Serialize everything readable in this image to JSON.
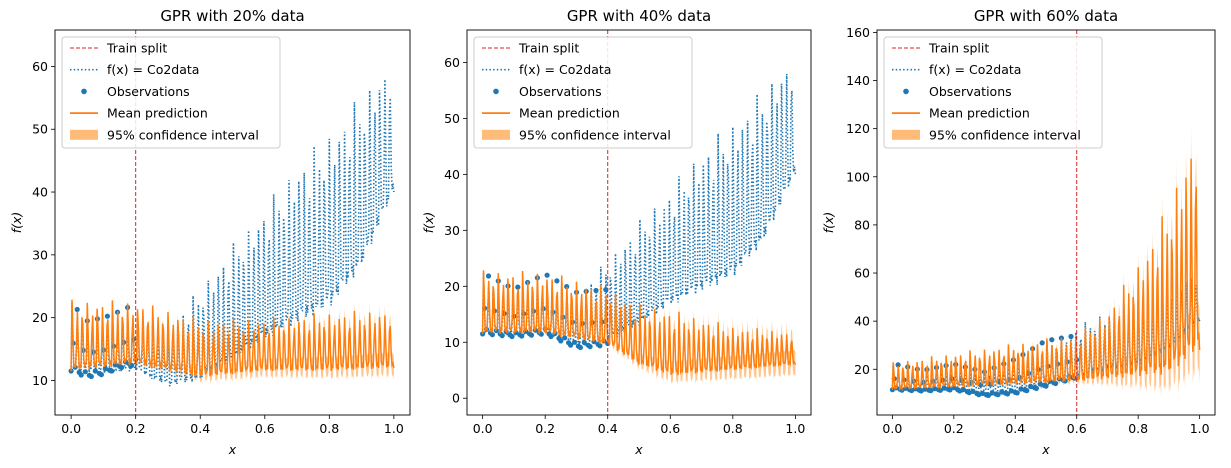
{
  "figure": {
    "background": "#ffffff",
    "colors": {
      "true_function": "#1f77b4",
      "observations": "#1f77b4",
      "mean_prediction": "#ff7f0e",
      "confidence_interval": "#ffbb78",
      "train_split": "#d62728"
    }
  },
  "chart_data": [
    {
      "type": "line",
      "title": "GPR with 20% data",
      "xlabel": "x",
      "ylabel": "f(x)",
      "xlim": [
        -0.05,
        1.05
      ],
      "ylim": [
        4.5,
        65.8
      ],
      "xticks": [
        "0.0",
        "0.2",
        "0.4",
        "0.6",
        "0.8",
        "1.0"
      ],
      "yticks": [
        "10",
        "20",
        "30",
        "40",
        "50",
        "60"
      ],
      "grid": false,
      "legend_position": "upper-left",
      "train_split_x": 0.2,
      "legend": [
        "Train split",
        "f(x) = Co2data",
        "Observations",
        "Mean prediction",
        "95% confidence interval"
      ],
      "series": [
        {
          "name": "f(x) = Co2data",
          "style": "dotted",
          "x": [
            0.0,
            0.1,
            0.2,
            0.3,
            0.4,
            0.5,
            0.6,
            0.7,
            0.8,
            0.9,
            1.0
          ],
          "y_low": [
            11.5,
            11.0,
            11.5,
            9.0,
            10.0,
            13.0,
            16.5,
            19.0,
            21.5,
            28.0,
            40.0
          ],
          "y_high": [
            22.5,
            20.0,
            21.5,
            19.0,
            25.0,
            32.0,
            38.0,
            45.0,
            50.0,
            56.0,
            62.5
          ]
        },
        {
          "name": "Observations",
          "style": "markers",
          "x": [
            0.0,
            0.05,
            0.1,
            0.15,
            0.2
          ],
          "y_low": [
            11.5,
            10.5,
            11.0,
            12.0,
            12.5
          ],
          "y_high": [
            23.0,
            20.0,
            20.5,
            21.5,
            22.8
          ]
        },
        {
          "name": "Mean prediction",
          "style": "solid",
          "x": [
            0.0,
            0.2,
            0.4,
            0.6,
            0.8,
            1.0
          ],
          "y_low": [
            11.5,
            12.5,
            10.5,
            11.5,
            11.5,
            12.0
          ],
          "y_high": [
            23.0,
            22.8,
            20.0,
            20.0,
            21.0,
            21.5
          ]
        },
        {
          "name": "95% confidence interval",
          "style": "band",
          "x": [
            0.0,
            0.2,
            0.4,
            0.6,
            0.8,
            1.0
          ],
          "half_width": [
            0.4,
            0.4,
            1.2,
            1.4,
            1.6,
            1.8
          ]
        }
      ]
    },
    {
      "type": "line",
      "title": "GPR with 40% data",
      "xlabel": "x",
      "ylabel": "f(x)",
      "xlim": [
        -0.05,
        1.05
      ],
      "ylim": [
        -3.0,
        65.8
      ],
      "xticks": [
        "0.0",
        "0.2",
        "0.4",
        "0.6",
        "0.8",
        "1.0"
      ],
      "yticks": [
        "0",
        "10",
        "20",
        "30",
        "40",
        "50",
        "60"
      ],
      "grid": false,
      "legend_position": "upper-left",
      "train_split_x": 0.4,
      "legend": [
        "Train split",
        "f(x) = Co2data",
        "Observations",
        "Mean prediction",
        "95% confidence interval"
      ],
      "series": [
        {
          "name": "f(x) = Co2data",
          "style": "dotted",
          "x": [
            0.0,
            0.1,
            0.2,
            0.3,
            0.4,
            0.5,
            0.6,
            0.7,
            0.8,
            0.9,
            1.0
          ],
          "y_low": [
            11.5,
            11.0,
            11.5,
            9.0,
            10.0,
            13.0,
            16.5,
            19.0,
            21.5,
            28.0,
            40.0
          ],
          "y_high": [
            22.5,
            20.0,
            21.5,
            19.0,
            25.0,
            32.0,
            38.0,
            45.0,
            50.0,
            56.0,
            62.5
          ]
        },
        {
          "name": "Observations",
          "style": "markers",
          "x": [
            0.0,
            0.1,
            0.2,
            0.3,
            0.4
          ],
          "y_low": [
            11.5,
            11.0,
            11.5,
            9.0,
            9.5
          ],
          "y_high": [
            23.0,
            20.0,
            22.8,
            19.5,
            20.0
          ]
        },
        {
          "name": "Mean prediction",
          "style": "solid",
          "x": [
            0.0,
            0.2,
            0.4,
            0.5,
            0.6,
            0.8,
            1.0
          ],
          "y_low": [
            11.5,
            11.5,
            9.5,
            6.0,
            4.0,
            5.0,
            6.0
          ],
          "y_high": [
            23.0,
            22.8,
            20.0,
            17.0,
            16.0,
            13.0,
            12.0
          ]
        },
        {
          "name": "95% confidence interval",
          "style": "band",
          "x": [
            0.0,
            0.4,
            0.6,
            0.8,
            1.0
          ],
          "half_width": [
            0.4,
            0.6,
            1.8,
            2.0,
            2.2
          ]
        }
      ]
    },
    {
      "type": "line",
      "title": "GPR with 60% data",
      "xlabel": "x",
      "ylabel": "f(x)",
      "xlim": [
        -0.05,
        1.05
      ],
      "ylim": [
        1.0,
        161.0
      ],
      "xticks": [
        "0.0",
        "0.2",
        "0.4",
        "0.6",
        "0.8",
        "1.0"
      ],
      "yticks": [
        "20",
        "40",
        "60",
        "80",
        "100",
        "120",
        "140",
        "160"
      ],
      "grid": false,
      "legend_position": "upper-left",
      "train_split_x": 0.6,
      "legend": [
        "Train split",
        "f(x) = Co2data",
        "Observations",
        "Mean prediction",
        "95% confidence interval"
      ],
      "series": [
        {
          "name": "f(x) = Co2data",
          "style": "dotted",
          "x": [
            0.0,
            0.1,
            0.2,
            0.3,
            0.4,
            0.5,
            0.6,
            0.7,
            0.8,
            0.9,
            1.0
          ],
          "y_low": [
            11.5,
            11.0,
            11.5,
            9.0,
            10.0,
            13.0,
            16.5,
            19.0,
            21.5,
            28.0,
            40.0
          ],
          "y_high": [
            22.5,
            20.0,
            21.5,
            19.0,
            25.0,
            32.0,
            38.0,
            45.0,
            50.0,
            56.0,
            62.5
          ]
        },
        {
          "name": "Observations",
          "style": "markers",
          "x": [
            0.0,
            0.1,
            0.2,
            0.3,
            0.4,
            0.5,
            0.6
          ],
          "y_low": [
            11.5,
            11.0,
            11.5,
            9.0,
            10.0,
            13.0,
            16.5
          ],
          "y_high": [
            23.0,
            20.0,
            22.8,
            19.5,
            25.0,
            33.0,
            35.0
          ]
        },
        {
          "name": "Mean prediction",
          "style": "solid",
          "x": [
            0.0,
            0.6,
            0.7,
            0.8,
            0.9,
            1.0
          ],
          "y_low": [
            11.5,
            15.0,
            16.0,
            17.0,
            18.0,
            28.0
          ],
          "y_high": [
            23.0,
            35.0,
            45.0,
            65.0,
            90.0,
            129.0
          ]
        },
        {
          "name": "95% confidence interval",
          "style": "band",
          "x": [
            0.0,
            0.6,
            0.7,
            0.8,
            0.9,
            1.0
          ],
          "half_width": [
            1.0,
            2.0,
            4.0,
            7.0,
            10.0,
            14.0
          ]
        }
      ]
    }
  ]
}
